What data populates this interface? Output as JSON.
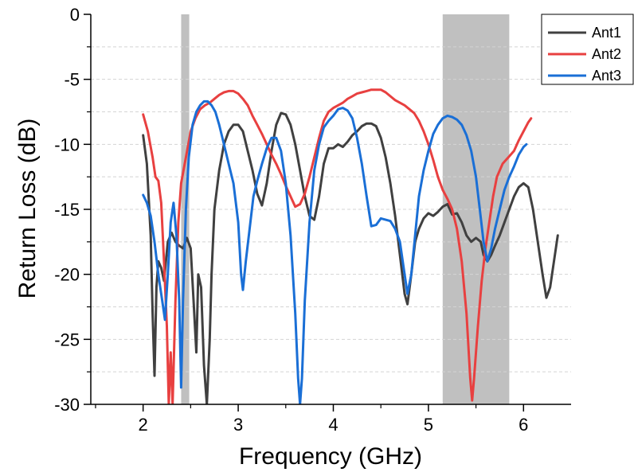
{
  "chart_data": {
    "type": "line",
    "xlabel": "Frequency (GHz)",
    "ylabel": "Return Loss (dB)",
    "xlim": [
      1.45,
      6.5
    ],
    "ylim": [
      -30,
      0
    ],
    "x_ticks": [
      2,
      3,
      4,
      5,
      6
    ],
    "y_ticks": [
      0,
      -5,
      -10,
      -15,
      -20,
      -25,
      -30
    ],
    "grid": "horizontal dashed, every 2.5 dB",
    "legend_position": "top-right",
    "shaded_bands": [
      {
        "x0": 2.4,
        "x1": 2.485,
        "color": "#c0c0c0"
      },
      {
        "x0": 5.15,
        "x1": 5.85,
        "color": "#c0c0c0"
      }
    ],
    "series": [
      {
        "name": "Ant1",
        "color": "#404040",
        "points": [
          [
            2.0,
            -9.3
          ],
          [
            2.04,
            -11.5
          ],
          [
            2.08,
            -17
          ],
          [
            2.1,
            -23
          ],
          [
            2.12,
            -27.8
          ],
          [
            2.14,
            -21
          ],
          [
            2.16,
            -19
          ],
          [
            2.19,
            -19.5
          ],
          [
            2.22,
            -20.5
          ],
          [
            2.26,
            -17.5
          ],
          [
            2.3,
            -16.8
          ],
          [
            2.34,
            -17.5
          ],
          [
            2.38,
            -17.8
          ],
          [
            2.42,
            -18
          ],
          [
            2.46,
            -17.2
          ],
          [
            2.5,
            -18
          ],
          [
            2.53,
            -22
          ],
          [
            2.56,
            -26
          ],
          [
            2.58,
            -20
          ],
          [
            2.61,
            -21
          ],
          [
            2.64,
            -27
          ],
          [
            2.67,
            -30
          ],
          [
            2.7,
            -25
          ],
          [
            2.72,
            -20
          ],
          [
            2.75,
            -15
          ],
          [
            2.8,
            -12
          ],
          [
            2.85,
            -10
          ],
          [
            2.9,
            -9
          ],
          [
            2.95,
            -8.5
          ],
          [
            3.0,
            -8.5
          ],
          [
            3.05,
            -9
          ],
          [
            3.1,
            -10.5
          ],
          [
            3.15,
            -12
          ],
          [
            3.2,
            -13.8
          ],
          [
            3.25,
            -14.7
          ],
          [
            3.3,
            -13
          ],
          [
            3.35,
            -10.5
          ],
          [
            3.4,
            -8.5
          ],
          [
            3.45,
            -7.6
          ],
          [
            3.5,
            -7.7
          ],
          [
            3.55,
            -8.5
          ],
          [
            3.6,
            -10
          ],
          [
            3.65,
            -12
          ],
          [
            3.7,
            -14
          ],
          [
            3.75,
            -15.5
          ],
          [
            3.8,
            -15.8
          ],
          [
            3.85,
            -14
          ],
          [
            3.9,
            -11.5
          ],
          [
            3.95,
            -10.3
          ],
          [
            4.0,
            -10.3
          ],
          [
            4.05,
            -10
          ],
          [
            4.1,
            -10.2
          ],
          [
            4.15,
            -9.8
          ],
          [
            4.2,
            -9.3
          ],
          [
            4.25,
            -9
          ],
          [
            4.3,
            -8.6
          ],
          [
            4.35,
            -8.4
          ],
          [
            4.4,
            -8.4
          ],
          [
            4.45,
            -8.6
          ],
          [
            4.5,
            -9.5
          ],
          [
            4.55,
            -11
          ],
          [
            4.6,
            -13
          ],
          [
            4.65,
            -15.5
          ],
          [
            4.7,
            -18.5
          ],
          [
            4.75,
            -21.5
          ],
          [
            4.78,
            -22.3
          ],
          [
            4.82,
            -20
          ],
          [
            4.86,
            -17.5
          ],
          [
            4.9,
            -16.5
          ],
          [
            4.95,
            -15.7
          ],
          [
            5.0,
            -15.3
          ],
          [
            5.05,
            -15.5
          ],
          [
            5.1,
            -15.2
          ],
          [
            5.15,
            -14.8
          ],
          [
            5.2,
            -14.6
          ],
          [
            5.25,
            -15.4
          ],
          [
            5.3,
            -15.3
          ],
          [
            5.35,
            -16
          ],
          [
            5.4,
            -17
          ],
          [
            5.45,
            -17.5
          ],
          [
            5.5,
            -17.2
          ],
          [
            5.55,
            -17.5
          ],
          [
            5.58,
            -18.5
          ],
          [
            5.62,
            -19
          ],
          [
            5.66,
            -18.5
          ],
          [
            5.7,
            -17.8
          ],
          [
            5.75,
            -17
          ],
          [
            5.8,
            -16
          ],
          [
            5.85,
            -15
          ],
          [
            5.9,
            -14
          ],
          [
            5.95,
            -13.3
          ],
          [
            6.0,
            -13
          ],
          [
            6.05,
            -13.3
          ],
          [
            6.1,
            -15
          ],
          [
            6.15,
            -17.5
          ],
          [
            6.2,
            -20
          ],
          [
            6.24,
            -21.8
          ],
          [
            6.28,
            -21
          ],
          [
            6.32,
            -19
          ],
          [
            6.36,
            -17
          ]
        ]
      },
      {
        "name": "Ant2",
        "color": "#e84040",
        "points": [
          [
            2.0,
            -7.7
          ],
          [
            2.05,
            -9
          ],
          [
            2.1,
            -11
          ],
          [
            2.13,
            -12.5
          ],
          [
            2.16,
            -12.8
          ],
          [
            2.19,
            -14.5
          ],
          [
            2.22,
            -19
          ],
          [
            2.25,
            -24
          ],
          [
            2.27,
            -30
          ],
          [
            2.29,
            -26
          ],
          [
            2.31,
            -30
          ],
          [
            2.34,
            -22
          ],
          [
            2.37,
            -16
          ],
          [
            2.4,
            -13
          ],
          [
            2.45,
            -11
          ],
          [
            2.5,
            -9
          ],
          [
            2.55,
            -8
          ],
          [
            2.6,
            -7.3
          ],
          [
            2.65,
            -7
          ],
          [
            2.7,
            -6.8
          ],
          [
            2.75,
            -6.5
          ],
          [
            2.8,
            -6.2
          ],
          [
            2.85,
            -6
          ],
          [
            2.9,
            -5.9
          ],
          [
            2.95,
            -5.9
          ],
          [
            3.0,
            -6.1
          ],
          [
            3.05,
            -6.5
          ],
          [
            3.1,
            -7
          ],
          [
            3.15,
            -7.8
          ],
          [
            3.2,
            -8.5
          ],
          [
            3.25,
            -9.2
          ],
          [
            3.3,
            -10
          ],
          [
            3.35,
            -10.8
          ],
          [
            3.4,
            -11.5
          ],
          [
            3.45,
            -12.3
          ],
          [
            3.5,
            -13.2
          ],
          [
            3.55,
            -14
          ],
          [
            3.6,
            -14.8
          ],
          [
            3.65,
            -14.6
          ],
          [
            3.7,
            -13.8
          ],
          [
            3.75,
            -12.5
          ],
          [
            3.8,
            -11
          ],
          [
            3.85,
            -9.5
          ],
          [
            3.9,
            -8.2
          ],
          [
            3.95,
            -7.5
          ],
          [
            4.0,
            -7.2
          ],
          [
            4.05,
            -7
          ],
          [
            4.1,
            -6.8
          ],
          [
            4.15,
            -6.5
          ],
          [
            4.2,
            -6.3
          ],
          [
            4.25,
            -6.1
          ],
          [
            4.3,
            -6
          ],
          [
            4.35,
            -5.9
          ],
          [
            4.4,
            -5.8
          ],
          [
            4.45,
            -5.8
          ],
          [
            4.5,
            -5.8
          ],
          [
            4.55,
            -6
          ],
          [
            4.6,
            -6.3
          ],
          [
            4.65,
            -6.6
          ],
          [
            4.7,
            -6.8
          ],
          [
            4.75,
            -7
          ],
          [
            4.8,
            -7.3
          ],
          [
            4.85,
            -7.6
          ],
          [
            4.9,
            -8.2
          ],
          [
            4.95,
            -9
          ],
          [
            5.0,
            -10
          ],
          [
            5.05,
            -11.2
          ],
          [
            5.1,
            -12.5
          ],
          [
            5.15,
            -13.5
          ],
          [
            5.2,
            -14.2
          ],
          [
            5.25,
            -15
          ],
          [
            5.3,
            -16.5
          ],
          [
            5.35,
            -19
          ],
          [
            5.4,
            -23
          ],
          [
            5.44,
            -28
          ],
          [
            5.46,
            -29.7
          ],
          [
            5.48,
            -28
          ],
          [
            5.52,
            -24
          ],
          [
            5.56,
            -20.5
          ],
          [
            5.6,
            -18
          ],
          [
            5.64,
            -16
          ],
          [
            5.68,
            -14
          ],
          [
            5.72,
            -12.5
          ],
          [
            5.78,
            -11.5
          ],
          [
            5.84,
            -11
          ],
          [
            5.9,
            -10.5
          ],
          [
            5.95,
            -9.7
          ],
          [
            6.0,
            -9
          ],
          [
            6.05,
            -8.3
          ],
          [
            6.08,
            -8
          ]
        ]
      },
      {
        "name": "Ant3",
        "color": "#1a6fd6",
        "points": [
          [
            2.0,
            -13.9
          ],
          [
            2.04,
            -14.5
          ],
          [
            2.08,
            -15.5
          ],
          [
            2.12,
            -17.5
          ],
          [
            2.16,
            -20
          ],
          [
            2.2,
            -22
          ],
          [
            2.23,
            -23.5
          ],
          [
            2.26,
            -20
          ],
          [
            2.29,
            -16
          ],
          [
            2.32,
            -14.5
          ],
          [
            2.35,
            -17
          ],
          [
            2.38,
            -22
          ],
          [
            2.4,
            -28.7
          ],
          [
            2.42,
            -22
          ],
          [
            2.45,
            -15
          ],
          [
            2.48,
            -11
          ],
          [
            2.52,
            -8.5
          ],
          [
            2.56,
            -7.5
          ],
          [
            2.6,
            -7
          ],
          [
            2.64,
            -6.7
          ],
          [
            2.68,
            -6.7
          ],
          [
            2.72,
            -7
          ],
          [
            2.76,
            -7.5
          ],
          [
            2.8,
            -8.5
          ],
          [
            2.85,
            -10
          ],
          [
            2.9,
            -11.5
          ],
          [
            2.95,
            -13
          ],
          [
            3.0,
            -16
          ],
          [
            3.03,
            -20
          ],
          [
            3.05,
            -21.2
          ],
          [
            3.08,
            -19
          ],
          [
            3.12,
            -16.5
          ],
          [
            3.16,
            -14
          ],
          [
            3.2,
            -12.8
          ],
          [
            3.25,
            -11.5
          ],
          [
            3.3,
            -10.3
          ],
          [
            3.35,
            -9.5
          ],
          [
            3.4,
            -9.5
          ],
          [
            3.45,
            -10.5
          ],
          [
            3.5,
            -13
          ],
          [
            3.55,
            -17
          ],
          [
            3.6,
            -23
          ],
          [
            3.63,
            -28
          ],
          [
            3.65,
            -30
          ],
          [
            3.67,
            -28
          ],
          [
            3.7,
            -22
          ],
          [
            3.75,
            -16
          ],
          [
            3.8,
            -12
          ],
          [
            3.85,
            -10
          ],
          [
            3.9,
            -8.7
          ],
          [
            3.95,
            -8.2
          ],
          [
            4.0,
            -7.8
          ],
          [
            4.05,
            -7.3
          ],
          [
            4.1,
            -7.2
          ],
          [
            4.15,
            -7.4
          ],
          [
            4.2,
            -8
          ],
          [
            4.25,
            -9.5
          ],
          [
            4.3,
            -11.5
          ],
          [
            4.35,
            -14
          ],
          [
            4.4,
            -16.3
          ],
          [
            4.45,
            -16.2
          ],
          [
            4.5,
            -15.7
          ],
          [
            4.55,
            -15.8
          ],
          [
            4.6,
            -15.9
          ],
          [
            4.65,
            -16.5
          ],
          [
            4.7,
            -17.5
          ],
          [
            4.74,
            -19.5
          ],
          [
            4.78,
            -21.5
          ],
          [
            4.82,
            -20
          ],
          [
            4.86,
            -17
          ],
          [
            4.9,
            -14
          ],
          [
            4.95,
            -12
          ],
          [
            5.0,
            -10.5
          ],
          [
            5.05,
            -9.2
          ],
          [
            5.1,
            -8.5
          ],
          [
            5.15,
            -8
          ],
          [
            5.2,
            -7.8
          ],
          [
            5.25,
            -7.9
          ],
          [
            5.3,
            -8.1
          ],
          [
            5.35,
            -8.5
          ],
          [
            5.4,
            -9.3
          ],
          [
            5.45,
            -10.5
          ],
          [
            5.5,
            -12.5
          ],
          [
            5.54,
            -15
          ],
          [
            5.58,
            -17.5
          ],
          [
            5.62,
            -19
          ],
          [
            5.66,
            -18
          ],
          [
            5.7,
            -16.5
          ],
          [
            5.75,
            -15
          ],
          [
            5.8,
            -13.5
          ],
          [
            5.85,
            -12.5
          ],
          [
            5.9,
            -11.7
          ],
          [
            5.95,
            -10.8
          ],
          [
            6.0,
            -10.2
          ],
          [
            6.03,
            -10
          ]
        ]
      }
    ]
  }
}
